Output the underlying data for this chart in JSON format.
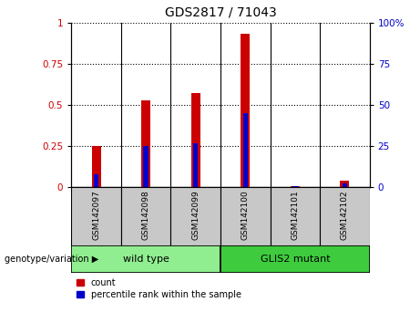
{
  "title": "GDS2817 / 71043",
  "samples": [
    "GSM142097",
    "GSM142098",
    "GSM142099",
    "GSM142100",
    "GSM142101",
    "GSM142102"
  ],
  "count_values": [
    0.25,
    0.53,
    0.57,
    0.93,
    0.005,
    0.04
  ],
  "percentile_values": [
    0.08,
    0.25,
    0.27,
    0.45,
    0.005,
    0.025
  ],
  "groups": [
    {
      "label": "wild type",
      "start": 0,
      "end": 3,
      "color": "#90EE90"
    },
    {
      "label": "GLIS2 mutant",
      "start": 3,
      "end": 6,
      "color": "#3ECC3E"
    }
  ],
  "bar_color": "#CC0000",
  "percentile_color": "#0000CC",
  "bar_width": 0.18,
  "ylim_left": [
    0,
    1.0
  ],
  "ylim_right": [
    0,
    100
  ],
  "yticks_left": [
    0,
    0.25,
    0.5,
    0.75,
    1.0
  ],
  "yticks_right": [
    0,
    25,
    50,
    75,
    100
  ],
  "ytick_labels_left": [
    "0",
    "0.25",
    "0.5",
    "0.75",
    "1"
  ],
  "ytick_labels_right": [
    "0",
    "25",
    "50",
    "75",
    "100%"
  ],
  "left_tick_color": "#CC0000",
  "right_tick_color": "#0000CC",
  "legend_count_label": "count",
  "legend_percentile_label": "percentile rank within the sample",
  "genotype_label": "genotype/variation",
  "xlabel_area_color": "#C8C8C8",
  "group_border_color": "#000000",
  "fig_width": 4.61,
  "fig_height": 3.54,
  "dpi": 100
}
